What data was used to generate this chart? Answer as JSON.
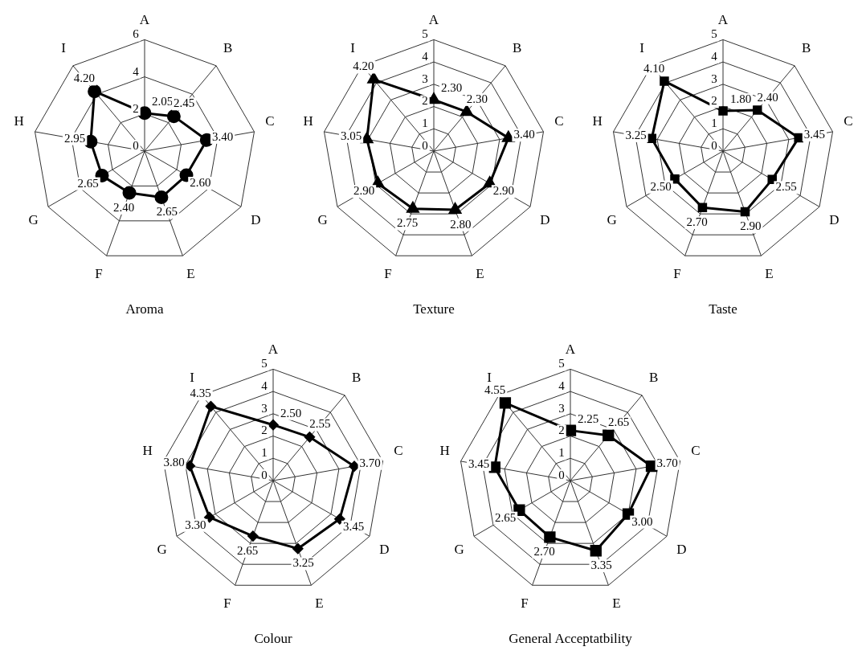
{
  "chart_data": [
    {
      "type": "radar",
      "title": "Aroma",
      "categories": [
        "A",
        "B",
        "C",
        "D",
        "E",
        "F",
        "G",
        "H",
        "I"
      ],
      "series": [
        {
          "color": "#000000",
          "values": [
            2.05,
            2.45,
            3.4,
            2.6,
            2.65,
            2.4,
            2.65,
            2.95,
            4.2
          ],
          "value_labels": [
            "2.05",
            "2.45",
            "3.40",
            "2.60",
            "2.65",
            "2.40",
            "2.65",
            "2.95",
            "4.20"
          ]
        }
      ],
      "ylim": [
        0,
        6
      ],
      "yticks": [
        0,
        2,
        4,
        6
      ],
      "marker": "circle",
      "grid": true,
      "legend": false
    },
    {
      "type": "radar",
      "title": "Texture",
      "categories": [
        "A",
        "B",
        "C",
        "D",
        "E",
        "F",
        "G",
        "H",
        "I"
      ],
      "series": [
        {
          "color": "#000000",
          "values": [
            2.3,
            2.3,
            3.4,
            2.9,
            2.8,
            2.75,
            2.9,
            3.05,
            4.2
          ],
          "value_labels": [
            "2.30",
            "2.30",
            "3.40",
            "2.90",
            "2.80",
            "2.75",
            "2.90",
            "3.05",
            "4.20"
          ]
        }
      ],
      "ylim": [
        0,
        5
      ],
      "yticks": [
        0,
        1,
        2,
        3,
        4,
        5
      ],
      "marker": "triangle",
      "grid": true,
      "legend": false
    },
    {
      "type": "radar",
      "title": "Taste",
      "categories": [
        "A",
        "B",
        "C",
        "D",
        "E",
        "F",
        "G",
        "H",
        "I"
      ],
      "series": [
        {
          "color": "#000000",
          "values": [
            1.8,
            2.4,
            3.45,
            2.55,
            2.9,
            2.7,
            2.5,
            3.25,
            4.1
          ],
          "value_labels": [
            "1.80",
            "2.40",
            "3.45",
            "2.55",
            "2.90",
            "2.70",
            "2.50",
            "3.25",
            "4.10"
          ]
        }
      ],
      "ylim": [
        0,
        5
      ],
      "yticks": [
        0,
        1,
        2,
        3,
        4,
        5
      ],
      "marker": "square",
      "grid": true,
      "legend": false
    },
    {
      "type": "radar",
      "title": "Colour",
      "categories": [
        "A",
        "B",
        "C",
        "D",
        "E",
        "F",
        "G",
        "H",
        "I"
      ],
      "series": [
        {
          "color": "#000000",
          "values": [
            2.5,
            2.55,
            3.7,
            3.45,
            3.25,
            2.65,
            3.3,
            3.8,
            4.35
          ],
          "value_labels": [
            "2.50",
            "2.55",
            "3.70",
            "3.45",
            "3.25",
            "2.65",
            "3.30",
            "3.80",
            "4.35"
          ]
        }
      ],
      "ylim": [
        0,
        5
      ],
      "yticks": [
        0,
        1,
        2,
        3,
        4,
        5
      ],
      "marker": "diamond",
      "grid": true,
      "legend": false
    },
    {
      "type": "radar",
      "title": "General Acceptatbility",
      "categories": [
        "A",
        "B",
        "C",
        "D",
        "E",
        "F",
        "G",
        "H",
        "I"
      ],
      "series": [
        {
          "color": "#000000",
          "values": [
            2.25,
            2.65,
            3.7,
            3.0,
            3.35,
            2.7,
            2.65,
            3.45,
            4.55
          ],
          "value_labels": [
            "2.25",
            "2.65",
            "3.70",
            "3.00",
            "3.35",
            "2.70",
            "2.65",
            "3.45",
            "4.55"
          ]
        }
      ],
      "ylim": [
        0,
        5
      ],
      "yticks": [
        0,
        1,
        2,
        3,
        4,
        5
      ],
      "marker": "square",
      "grid": true,
      "legend": false
    }
  ]
}
